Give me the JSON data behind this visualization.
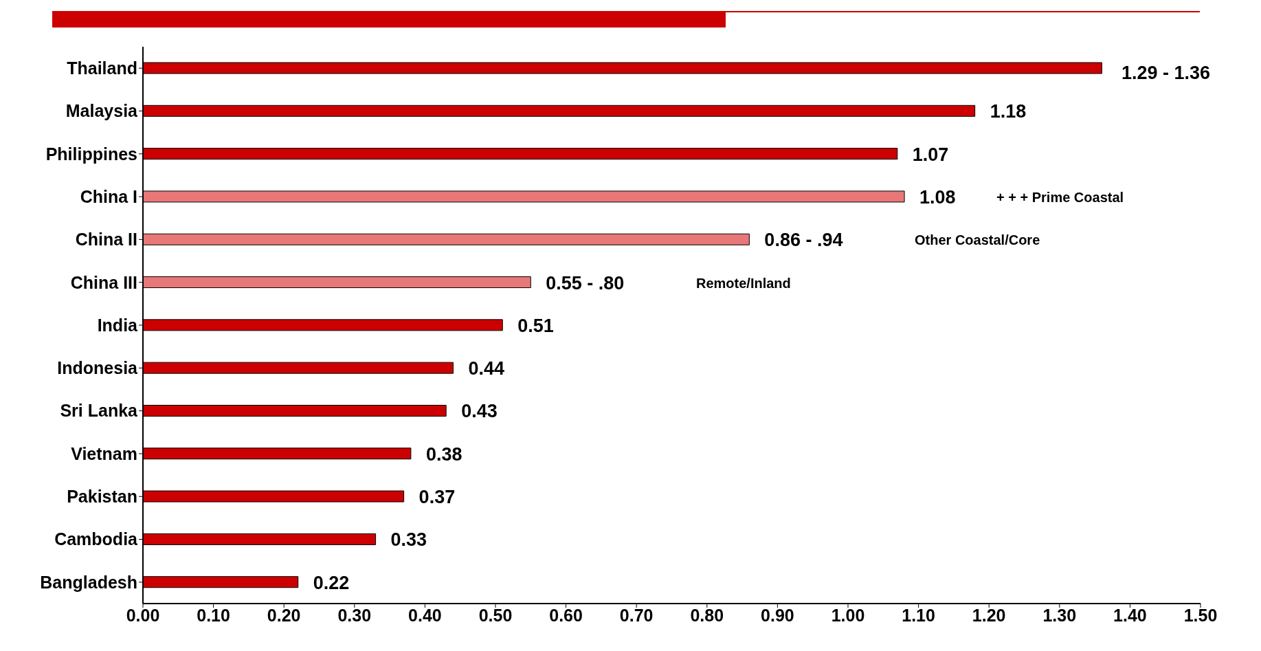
{
  "chart_data": {
    "type": "bar",
    "orientation": "horizontal",
    "categories": [
      "Thailand",
      "Malaysia",
      "Philippines",
      "China I",
      "China II",
      "China III",
      "India",
      "Indonesia",
      "Sri Lanka",
      "Vietnam",
      "Pakistan",
      "Cambodia",
      "Bangladesh"
    ],
    "values": [
      1.36,
      1.18,
      1.07,
      1.08,
      0.86,
      0.55,
      0.51,
      0.44,
      0.43,
      0.38,
      0.37,
      0.33,
      0.22
    ],
    "colors": [
      "#cc0000",
      "#cc0000",
      "#cc0000",
      "#e87878",
      "#e87878",
      "#e87878",
      "#cc0000",
      "#cc0000",
      "#cc0000",
      "#cc0000",
      "#cc0000",
      "#cc0000",
      "#cc0000"
    ],
    "value_labels": [
      null,
      "1.18",
      "1.07",
      "1.08",
      "0.86  - .94",
      "0.55  - .80",
      "0.51",
      "0.44",
      "0.43",
      "0.38",
      "0.37",
      "0.33",
      "0.22"
    ],
    "annotations": [
      "1.29 - 1.36",
      "+ + + Prime Coastal",
      "Other Coastal/Core",
      "Remote/Inland"
    ],
    "xlim": [
      0,
      1.5
    ],
    "xticks": [
      {
        "value": 0,
        "label": "0.00"
      },
      {
        "value": 0.1,
        "label": "0.10"
      },
      {
        "value": 0.2,
        "label": "0.20"
      },
      {
        "value": 0.3,
        "label": "0.30"
      },
      {
        "value": 0.4,
        "label": "0.40"
      },
      {
        "value": 0.5,
        "label": "0.50"
      },
      {
        "value": 0.6,
        "label": "0.60"
      },
      {
        "value": 0.7,
        "label": "0.70"
      },
      {
        "value": 0.8,
        "label": "0.80"
      },
      {
        "value": 0.9,
        "label": "0.90"
      },
      {
        "value": 1,
        "label": "1.00"
      },
      {
        "value": 1.1,
        "label": "1.10"
      },
      {
        "value": 1.2,
        "label": "1.20"
      },
      {
        "value": 1.3,
        "label": "1.30"
      },
      {
        "value": 1.4,
        "label": "1.40"
      },
      {
        "value": 1.5,
        "label": "1.50"
      }
    ]
  }
}
